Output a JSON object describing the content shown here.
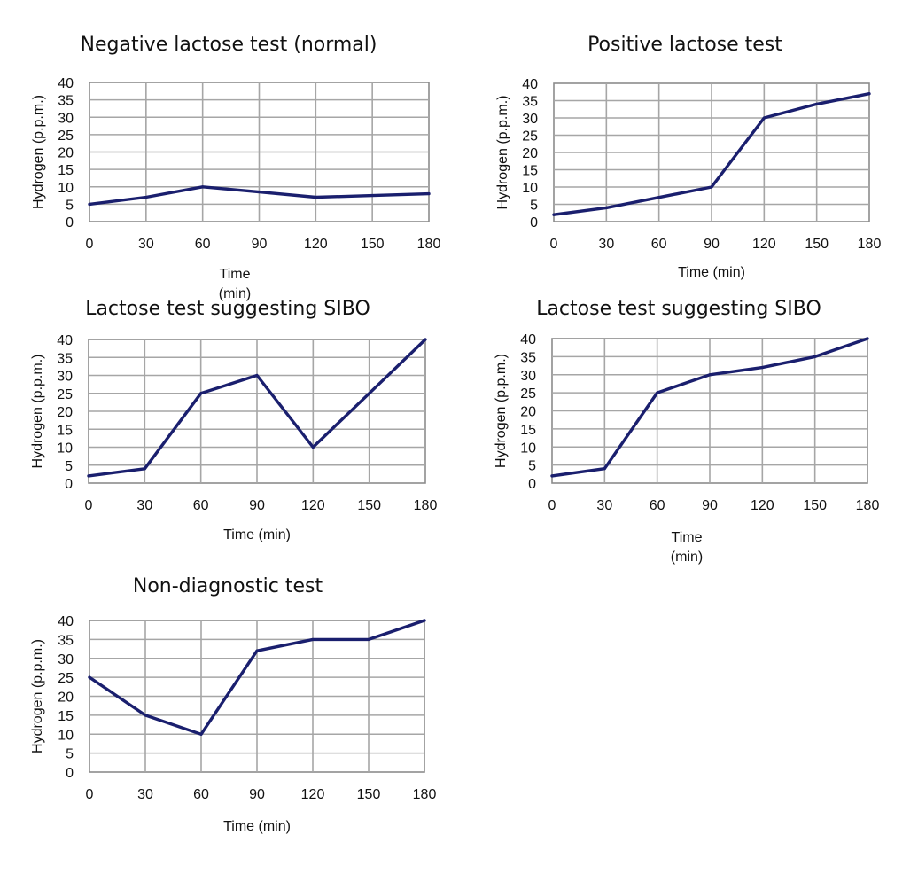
{
  "figure": {
    "line_color": "#1a1f6e",
    "grid_color": "#a6a6a6"
  },
  "chart_data": [
    {
      "type": "line",
      "title": "Negative lactose test (normal)",
      "xlabel_lines": [
        "Time",
        "(min)"
      ],
      "ylabel": "Hydrogen (p.p.m.)",
      "x": [
        0,
        30,
        60,
        90,
        120,
        150,
        180
      ],
      "series": [
        {
          "name": "Hydrogen",
          "values": [
            5,
            7,
            10,
            8.5,
            7,
            7.5,
            8
          ]
        }
      ],
      "xlim": [
        0,
        180
      ],
      "ylim": [
        0,
        40
      ],
      "xticks": [
        0,
        30,
        60,
        90,
        120,
        150,
        180
      ],
      "yticks": [
        0,
        5,
        10,
        15,
        20,
        25,
        30,
        35,
        40
      ],
      "grid": true,
      "legend": "none"
    },
    {
      "type": "line",
      "title": "Positive lactose test",
      "xlabel_lines": [
        "Time (min)"
      ],
      "ylabel": "Hydrogen (p.p.m.)",
      "x": [
        0,
        30,
        60,
        90,
        120,
        150,
        180
      ],
      "series": [
        {
          "name": "Hydrogen",
          "values": [
            2,
            4,
            7,
            10,
            30,
            34,
            37
          ]
        }
      ],
      "xlim": [
        0,
        180
      ],
      "ylim": [
        0,
        40
      ],
      "xticks": [
        0,
        30,
        60,
        90,
        120,
        150,
        180
      ],
      "yticks": [
        0,
        5,
        10,
        15,
        20,
        25,
        30,
        35,
        40
      ],
      "grid": true,
      "legend": "none"
    },
    {
      "type": "line",
      "title": "Lactose test suggesting SIBO",
      "xlabel_lines": [
        "Time (min)"
      ],
      "ylabel": "Hydrogen (p.p.m.)",
      "x": [
        0,
        30,
        60,
        90,
        120,
        150,
        180
      ],
      "series": [
        {
          "name": "Hydrogen",
          "values": [
            2,
            4,
            25,
            30,
            10,
            25,
            40
          ]
        }
      ],
      "xlim": [
        0,
        180
      ],
      "ylim": [
        0,
        40
      ],
      "xticks": [
        0,
        30,
        60,
        90,
        120,
        150,
        180
      ],
      "yticks": [
        0,
        5,
        10,
        15,
        20,
        25,
        30,
        35,
        40
      ],
      "grid": true,
      "legend": "none"
    },
    {
      "type": "line",
      "title": "Lactose test suggesting SIBO",
      "xlabel_lines": [
        "Time",
        "(min)"
      ],
      "ylabel": "Hydrogen (p.p.m.)",
      "x": [
        0,
        30,
        60,
        90,
        120,
        150,
        180
      ],
      "series": [
        {
          "name": "Hydrogen",
          "values": [
            2,
            4,
            25,
            30,
            32,
            35,
            40
          ]
        }
      ],
      "xlim": [
        0,
        180
      ],
      "ylim": [
        0,
        40
      ],
      "xticks": [
        0,
        30,
        60,
        90,
        120,
        150,
        180
      ],
      "yticks": [
        0,
        5,
        10,
        15,
        20,
        25,
        30,
        35,
        40
      ],
      "grid": true,
      "legend": "none"
    },
    {
      "type": "line",
      "title": "Non-diagnostic test",
      "xlabel_lines": [
        "Time (min)"
      ],
      "ylabel": "Hydrogen (p.p.m.)",
      "x": [
        0,
        30,
        60,
        90,
        120,
        150,
        180
      ],
      "series": [
        {
          "name": "Hydrogen",
          "values": [
            25,
            15,
            10,
            32,
            35,
            35,
            40
          ]
        }
      ],
      "xlim": [
        0,
        180
      ],
      "ylim": [
        0,
        40
      ],
      "xticks": [
        0,
        30,
        60,
        90,
        120,
        150,
        180
      ],
      "yticks": [
        0,
        5,
        10,
        15,
        20,
        25,
        30,
        35,
        40
      ],
      "grid": true,
      "legend": "none"
    }
  ]
}
